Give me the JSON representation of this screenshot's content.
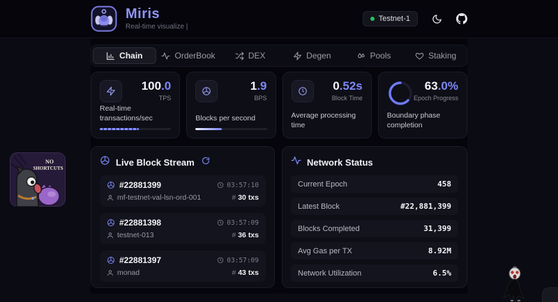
{
  "header": {
    "title": "Miris",
    "subtitle": "Real-time visualize |",
    "badge": "Testnet-1",
    "icons": {
      "logo": "miris-creature",
      "theme": "moon",
      "repo": "github"
    }
  },
  "tabs": [
    {
      "label": "Chain",
      "icon": "bar-chart",
      "active": true
    },
    {
      "label": "OrderBook",
      "icon": "activity",
      "active": false
    },
    {
      "label": "DEX",
      "icon": "shuffle",
      "active": false
    },
    {
      "label": "Degen",
      "icon": "zap",
      "active": false
    },
    {
      "label": "Pools",
      "icon": "droplets",
      "active": false
    },
    {
      "label": "Staking",
      "icon": "heart",
      "active": false
    }
  ],
  "stats": [
    {
      "value_int": "100",
      "value_frac": ".0",
      "unit": "TPS",
      "desc": "Real-time transactions/sec",
      "icon": "zap",
      "progress": 55,
      "bar_style": "striped"
    },
    {
      "value_int": "1",
      "value_frac": ".9",
      "unit": "BPS",
      "desc": "Blocks per second",
      "icon": "block-cube",
      "progress": 37,
      "bar_style": "gradient"
    },
    {
      "value_int": "0",
      "value_frac": ".52s",
      "unit": "Block Time",
      "desc": "Average processing time",
      "icon": "clock"
    },
    {
      "value_int": "63",
      "value_frac": ".0%",
      "unit": "Epoch Progress",
      "desc": "Boundary phase completion",
      "icon": "progress-ring",
      "ring_pct": 63
    }
  ],
  "block_stream": {
    "title": "Live Block Stream",
    "icon": "block-cube",
    "refresh_icon": "refresh",
    "txs_hash": "#",
    "blocks": [
      {
        "number": "#22881399",
        "time": "03:57:10",
        "validator": "mf-testnet-val-lsn-ord-001",
        "txs": "30 txs"
      },
      {
        "number": "#22881398",
        "time": "03:57:09",
        "validator": "testnet-013",
        "txs": "36 txs"
      },
      {
        "number": "#22881397",
        "time": "03:57:09",
        "validator": "monad",
        "txs": "43 txs"
      }
    ]
  },
  "network_status": {
    "title": "Network Status",
    "icon": "activity",
    "rows": [
      {
        "label": "Current Epoch",
        "value": "458"
      },
      {
        "label": "Latest Block",
        "value": "#22,881,399"
      },
      {
        "label": "Blocks Completed",
        "value": "31,399"
      },
      {
        "label": "Avg Gas per TX",
        "value": "8.92M"
      },
      {
        "label": "Network Utilization",
        "value": "6.5%"
      }
    ]
  },
  "sticker": {
    "line1": "NO",
    "line2": "SHORTCUTS"
  },
  "colors": {
    "accent": "#7d88f7",
    "green": "#22c55e",
    "bg": "#05050b",
    "card": "#0e0e17"
  }
}
